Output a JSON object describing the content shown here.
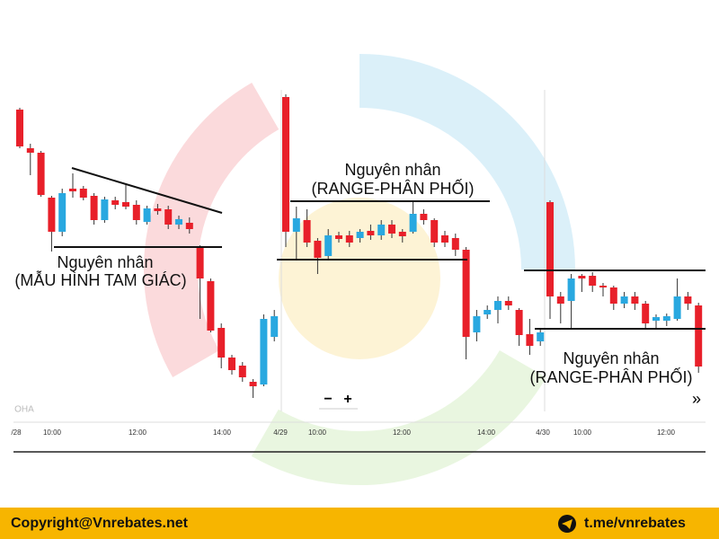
{
  "chart_data": {
    "type": "candlestick",
    "ylim": [
      0,
      355
    ],
    "up_color": "#29a8e0",
    "down_color": "#e8202a",
    "x_labels": [
      "/28",
      "10:00",
      "12:00",
      "14:00",
      "4/29",
      "10:00",
      "12:00",
      "14:00",
      "4/30",
      "10:00",
      "12:00"
    ],
    "sessions": [
      {
        "open": [
          333,
          290,
          285,
          235,
          197,
          245,
          245,
          237,
          210,
          232,
          230,
          227,
          208,
          223,
          222,
          205,
          207,
          179,
          142,
          90,
          57,
          48,
          30,
          27,
          80
        ],
        "high": [
          335,
          295,
          287,
          237,
          245,
          262,
          248,
          240,
          236,
          236,
          250,
          232,
          226,
          228,
          226,
          215,
          213,
          182,
          145,
          95,
          60,
          52,
          33,
          105,
          110
        ],
        "low": [
          290,
          260,
          236,
          175,
          192,
          235,
          232,
          205,
          207,
          222,
          222,
          205,
          205,
          216,
          200,
          200,
          195,
          100,
          85,
          45,
          38,
          30,
          12,
          25,
          75
        ],
        "close": [
          292,
          285,
          238,
          197,
          240,
          242,
          235,
          210,
          233,
          227,
          225,
          210,
          223,
          220,
          205,
          211,
          200,
          145,
          87,
          57,
          43,
          35,
          25,
          100,
          103
        ]
      },
      {
        "open": [
          347,
          197,
          210,
          187,
          170,
          193,
          193,
          190,
          198,
          193,
          205,
          197,
          197,
          217,
          210,
          193,
          190,
          177,
          85,
          105,
          110,
          120,
          110,
          83,
          75
        ],
        "high": [
          350,
          225,
          222,
          190,
          200,
          197,
          198,
          200,
          205,
          210,
          210,
          200,
          230,
          222,
          212,
          198,
          195,
          180,
          110,
          115,
          125,
          125,
          112,
          100,
          90
        ],
        "low": [
          180,
          165,
          180,
          150,
          166,
          185,
          180,
          185,
          188,
          188,
          190,
          185,
          195,
          205,
          180,
          180,
          170,
          55,
          75,
          100,
          95,
          110,
          70,
          60,
          70
        ],
        "close": [
          197,
          212,
          185,
          168,
          193,
          189,
          185,
          197,
          193,
          205,
          195,
          192,
          217,
          210,
          185,
          185,
          177,
          80,
          103,
          110,
          120,
          115,
          82,
          70,
          85
        ]
      },
      {
        "open": [
          230,
          125,
          120,
          148,
          148,
          137,
          135,
          117,
          125,
          117,
          98,
          98,
          100,
          125,
          115
        ],
        "high": [
          232,
          130,
          150,
          150,
          152,
          140,
          137,
          130,
          130,
          120,
          105,
          106,
          145,
          130,
          118
        ],
        "low": [
          100,
          95,
          90,
          130,
          130,
          125,
          110,
          112,
          110,
          90,
          90,
          92,
          98,
          110,
          40
        ],
        "close": [
          125,
          117,
          145,
          145,
          137,
          135,
          117,
          125,
          117,
          95,
          102,
          103,
          125,
          117,
          47
        ]
      }
    ],
    "annotations": [
      {
        "title": "Nguyên nhân",
        "text": "(MẪU HÌNH TAM GIÁC)"
      },
      {
        "title": "Nguyên nhân",
        "text": "(RANGE-PHÂN PHỐI)"
      },
      {
        "title": "Nguyên nhân",
        "text": "(RANGE-PHÂN PHỐI)"
      }
    ],
    "zoom_out": "−",
    "zoom_in": "+",
    "scroll": "»",
    "watermark": "OHA"
  },
  "footer": {
    "copyright": "Copyright@Vnrebates.net",
    "telegram": "t.me/vnrebates"
  }
}
